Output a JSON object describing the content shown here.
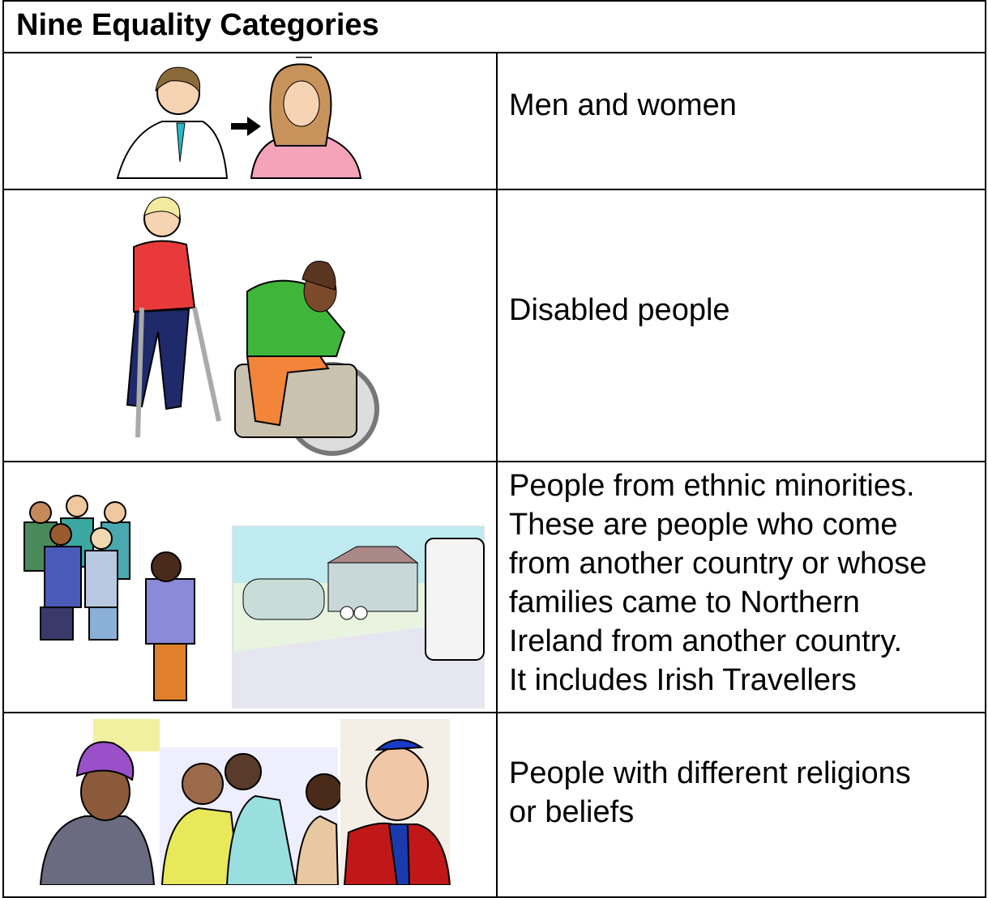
{
  "header": {
    "title": "Nine Equality Categories"
  },
  "table": {
    "rows": [
      {
        "text": [
          "Men and women"
        ]
      },
      {
        "text": [
          "Disabled people"
        ]
      },
      {
        "text": [
          "People from ethnic minorities.",
          "These are people who come",
          "from another country or whose",
          "families came to Northern",
          "Ireland from another country.",
          "It includes Irish Travellers"
        ]
      },
      {
        "text": [
          "People with different religions",
          "or beliefs"
        ]
      }
    ]
  }
}
